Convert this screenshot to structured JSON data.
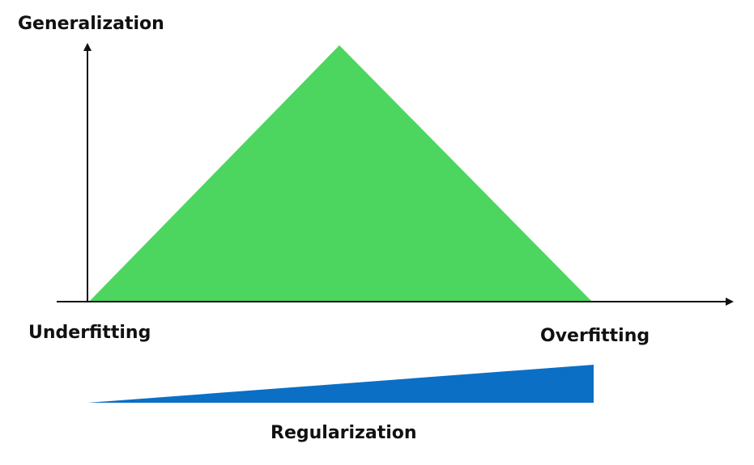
{
  "labels": {
    "y_axis": "Generalization",
    "left_extreme": "Underfitting",
    "right_extreme": "Overfitting",
    "bottom": "Regularization"
  },
  "colors": {
    "triangle": "#4cd65f",
    "wedge": "#0b6fc6",
    "axis": "#111111"
  },
  "icons": {
    "y_axis_arrow": "arrow-up-icon",
    "x_axis_arrow": "arrow-right-icon"
  }
}
